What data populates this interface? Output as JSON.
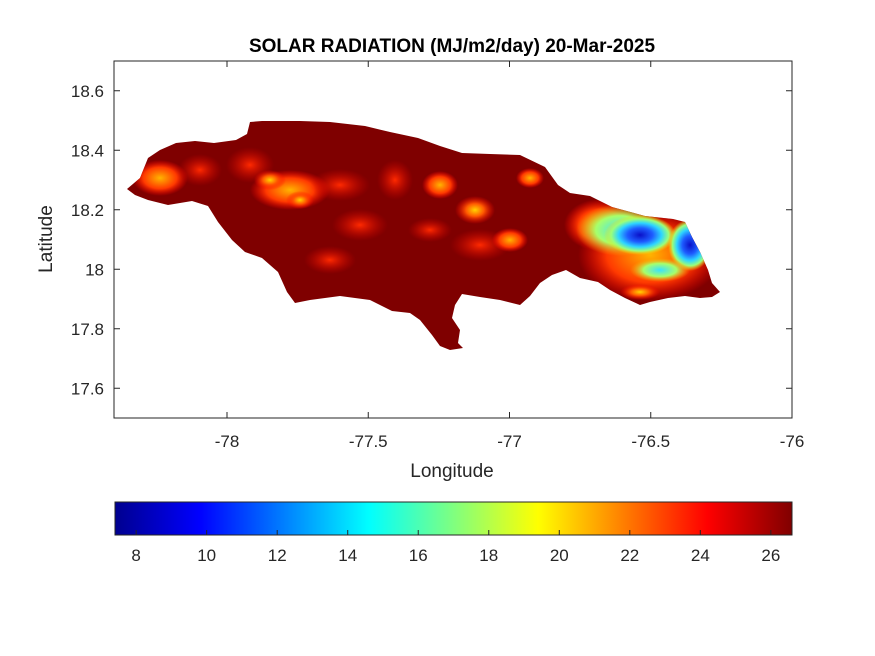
{
  "title": "SOLAR RADIATION (MJ/m2/day) 20-Mar-2025",
  "map": {
    "xlabel": "Longitude",
    "ylabel": "Latitude",
    "xlim": [
      -78.4,
      -76
    ],
    "ylim": [
      17.5,
      18.7
    ],
    "xticks": [
      -78,
      -77.5,
      -77,
      -76.5,
      -76
    ],
    "xtick_labels": [
      "-78",
      "-77.5",
      "-77",
      "-76.5",
      "-76"
    ],
    "yticks": [
      17.6,
      17.8,
      18,
      18.2,
      18.4,
      18.6
    ],
    "ytick_labels": [
      "17.6",
      "17.8",
      "18",
      "18.2",
      "18.4",
      "18.6"
    ],
    "region": "Jamaica",
    "colormap": "jet",
    "background_color": "#7f0000",
    "low_value_area": "east (Blue Mountains)"
  },
  "colorbar": {
    "range": [
      7.4,
      26.6
    ],
    "ticks": [
      8,
      10,
      12,
      14,
      16,
      18,
      20,
      22,
      24,
      26
    ],
    "tick_labels": [
      "8",
      "10",
      "12",
      "14",
      "16",
      "18",
      "20",
      "22",
      "24",
      "26"
    ],
    "colors": [
      "#00008f",
      "#0000ff",
      "#00ffff",
      "#ffff00",
      "#ff0000",
      "#800000"
    ]
  }
}
